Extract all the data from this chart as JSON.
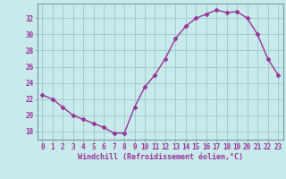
{
  "x": [
    0,
    1,
    2,
    3,
    4,
    5,
    6,
    7,
    8,
    9,
    10,
    11,
    12,
    13,
    14,
    15,
    16,
    17,
    18,
    19,
    20,
    21,
    22,
    23
  ],
  "y": [
    22.5,
    22.0,
    21.0,
    20.0,
    19.5,
    19.0,
    18.5,
    17.8,
    17.8,
    21.0,
    23.5,
    25.0,
    27.0,
    29.5,
    31.0,
    32.0,
    32.5,
    33.0,
    32.7,
    32.8,
    32.0,
    30.0,
    27.0,
    25.0
  ],
  "line_color": "#993399",
  "marker": "D",
  "marker_size": 2.5,
  "background_color": "#c8eaea",
  "grid_color": "#9ecece",
  "xlabel": "Windchill (Refroidissement éolien,°C)",
  "xlabel_color": "#993399",
  "tick_color": "#993399",
  "spine_color": "#7799aa",
  "xlim": [
    -0.5,
    23.5
  ],
  "ylim": [
    17.0,
    33.8
  ],
  "yticks": [
    18,
    20,
    22,
    24,
    26,
    28,
    30,
    32
  ],
  "xticks": [
    0,
    1,
    2,
    3,
    4,
    5,
    6,
    7,
    8,
    9,
    10,
    11,
    12,
    13,
    14,
    15,
    16,
    17,
    18,
    19,
    20,
    21,
    22,
    23
  ],
  "xtick_labels": [
    "0",
    "1",
    "2",
    "3",
    "4",
    "5",
    "6",
    "7",
    "8",
    "9",
    "10",
    "11",
    "12",
    "13",
    "14",
    "15",
    "16",
    "17",
    "18",
    "19",
    "20",
    "21",
    "22",
    "23"
  ],
  "ytick_labels": [
    "18",
    "20",
    "22",
    "24",
    "26",
    "28",
    "30",
    "32"
  ],
  "xlabel_fontsize": 6.0,
  "tick_fontsize": 5.5,
  "linewidth": 1.0
}
